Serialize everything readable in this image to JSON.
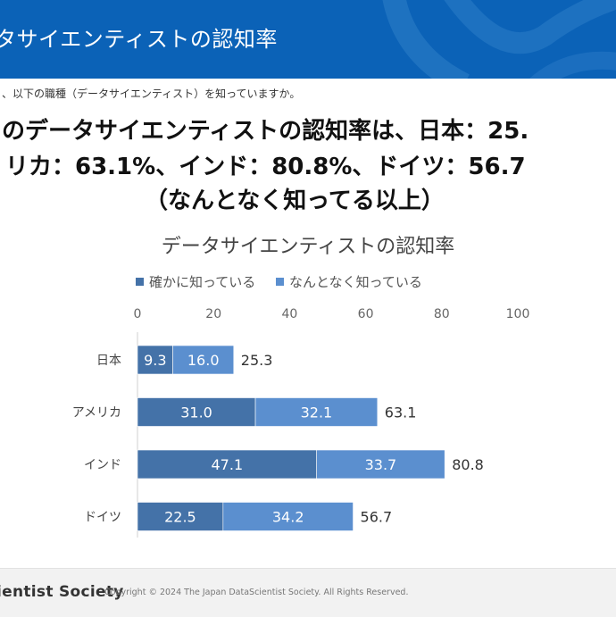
{
  "header": {
    "title": "タサイエンティストの認知率",
    "bg_color": "#0b62b7"
  },
  "question": "、以下の職種（データサイエンティスト）を知っていますか。",
  "headline": {
    "line1": "のデータサイエンティストの認知率は、日本：25.",
    "line2": "リカ：63.1%、インド：80.8%、ドイツ：56.7",
    "line3": "（なんとなく知ってる以上）"
  },
  "chart_data": {
    "type": "bar",
    "orientation": "horizontal",
    "stacked": true,
    "title": "データサイエンティストの認知率",
    "categories": [
      "日本",
      "アメリカ",
      "インド",
      "ドイツ"
    ],
    "series": [
      {
        "name": "確かに知っている",
        "values": [
          9.3,
          31.0,
          47.1,
          22.5
        ],
        "color": "#4472a8",
        "labels": [
          "9.3",
          "31.0",
          "47.1",
          "22.5"
        ]
      },
      {
        "name": "なんとなく知っている",
        "values": [
          16.0,
          32.1,
          33.7,
          34.2
        ],
        "color": "#5b8fcf",
        "labels": [
          "16.0",
          "32.1",
          "33.7",
          "34.2"
        ]
      }
    ],
    "totals": [
      25.3,
      63.1,
      80.8,
      56.7
    ],
    "total_labels": [
      "25.3",
      "63.1",
      "80.8",
      "56.7"
    ],
    "xlim": [
      0,
      100
    ],
    "xticks": [
      0,
      20,
      40,
      60,
      80,
      100
    ],
    "xtick_labels": [
      "0",
      "20",
      "40",
      "60",
      "80",
      "100"
    ],
    "axis_position": "top",
    "legend_position": "top-left",
    "grid": false
  },
  "footer": {
    "brand": "ientist Society",
    "copyright": "Copyright © 2024 The Japan DataScientist Society. All Rights Reserved."
  }
}
